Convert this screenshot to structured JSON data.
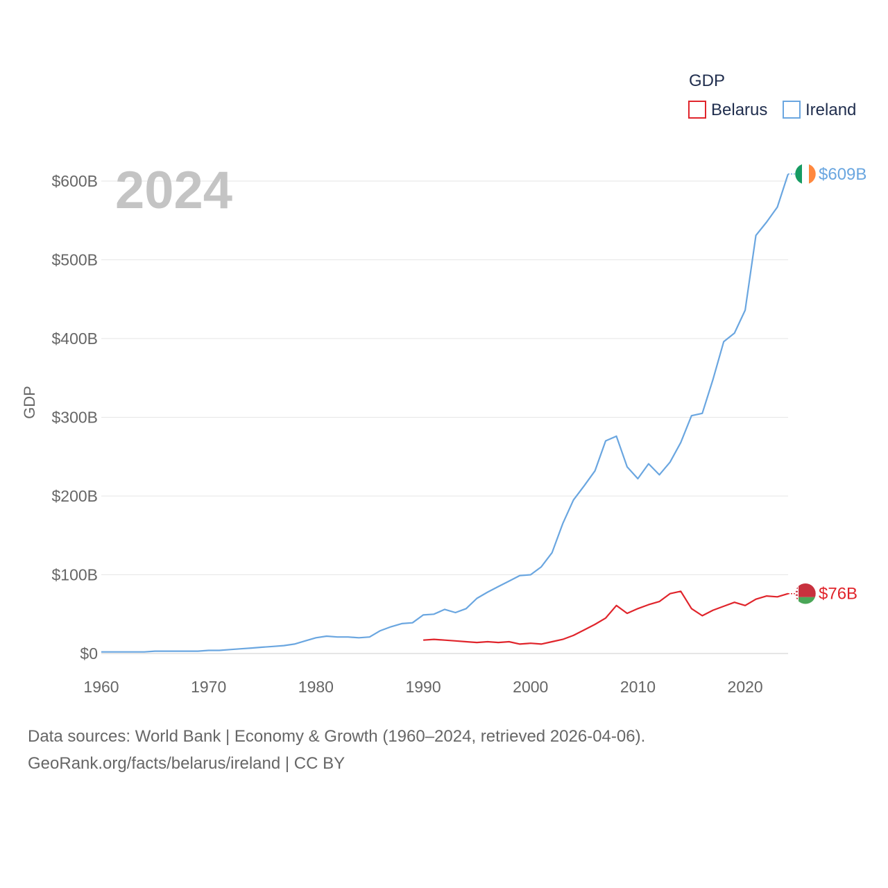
{
  "source": {
    "line1": "Data sources: World Bank | Economy & Growth (1960–2024, retrieved 2026-04-06).",
    "line2": "GeoRank.org/facts/belarus/ireland | CC BY"
  },
  "chart_data": {
    "type": "line",
    "title": "",
    "year_label": "2024",
    "legend_title": "GDP",
    "legend_position": "top-right",
    "xlabel": "",
    "ylabel": "GDP",
    "xlim": [
      1960,
      2024
    ],
    "ylim": [
      0,
      600
    ],
    "grid": true,
    "x_ticks": [
      1960,
      1970,
      1980,
      1990,
      2000,
      2010,
      2020
    ],
    "x_tick_labels": [
      "1960",
      "1970",
      "1980",
      "1990",
      "2000",
      "2010",
      "2020"
    ],
    "y_ticks": [
      0,
      100,
      200,
      300,
      400,
      500,
      600
    ],
    "y_tick_labels": [
      "$0",
      "$100B",
      "$200B",
      "$300B",
      "$400B",
      "$500B",
      "$600B"
    ],
    "series": [
      {
        "name": "Belarus",
        "color": "#e0242b",
        "flag": "belarus-flag",
        "end_label": "$76B",
        "x": [
          1990,
          1991,
          1992,
          1993,
          1994,
          1995,
          1996,
          1997,
          1998,
          1999,
          2000,
          2001,
          2002,
          2003,
          2004,
          2005,
          2006,
          2007,
          2008,
          2009,
          2010,
          2011,
          2012,
          2013,
          2014,
          2015,
          2016,
          2017,
          2018,
          2019,
          2020,
          2021,
          2022,
          2023,
          2024
        ],
        "values": [
          17,
          18,
          17,
          16,
          15,
          14,
          15,
          14,
          15,
          12,
          13,
          12,
          15,
          18,
          23,
          30,
          37,
          45,
          61,
          51,
          57,
          62,
          66,
          76,
          79,
          57,
          48,
          55,
          60,
          65,
          61,
          69,
          73,
          72,
          76
        ]
      },
      {
        "name": "Ireland",
        "color": "#6aa6e0",
        "flag": "ireland-flag",
        "end_label": "$609B",
        "x": [
          1960,
          1961,
          1962,
          1963,
          1964,
          1965,
          1966,
          1967,
          1968,
          1969,
          1970,
          1971,
          1972,
          1973,
          1974,
          1975,
          1976,
          1977,
          1978,
          1979,
          1980,
          1981,
          1982,
          1983,
          1984,
          1985,
          1986,
          1987,
          1988,
          1989,
          1990,
          1991,
          1992,
          1993,
          1994,
          1995,
          1996,
          1997,
          1998,
          1999,
          2000,
          2001,
          2002,
          2003,
          2004,
          2005,
          2006,
          2007,
          2008,
          2009,
          2010,
          2011,
          2012,
          2013,
          2014,
          2015,
          2016,
          2017,
          2018,
          2019,
          2020,
          2021,
          2022,
          2023,
          2024
        ],
        "values": [
          2,
          2,
          2,
          2,
          2,
          3,
          3,
          3,
          3,
          3,
          4,
          4,
          5,
          6,
          7,
          8,
          9,
          10,
          12,
          16,
          20,
          22,
          21,
          21,
          20,
          21,
          29,
          34,
          38,
          39,
          49,
          50,
          56,
          52,
          57,
          70,
          78,
          85,
          92,
          99,
          100,
          110,
          128,
          165,
          195,
          213,
          232,
          270,
          276,
          237,
          222,
          241,
          227,
          243,
          268,
          302,
          305,
          348,
          396,
          407,
          436,
          531,
          548,
          567,
          609
        ]
      }
    ]
  }
}
